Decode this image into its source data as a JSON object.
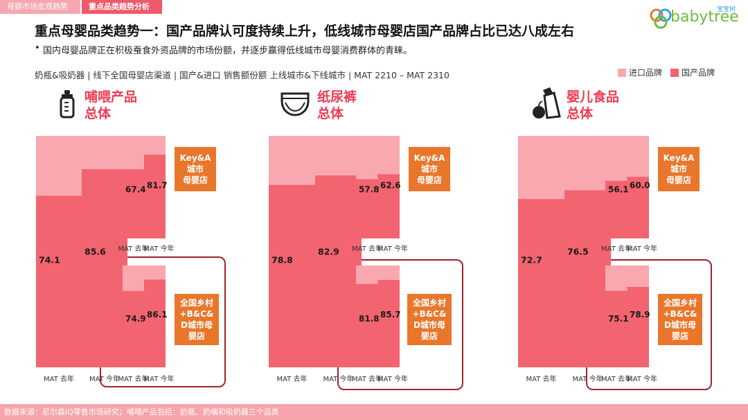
{
  "tabs": [
    "母婴市场宏观趋势",
    "重点品类趋势分析"
  ],
  "logo": {
    "text": "babytree",
    "sub": "宝宝树"
  },
  "title": "重点母婴品类趋势一：国产品牌认可度持续上升，低线城市母婴店国产品牌占比已达八成左右",
  "bullet": "国内母婴品牌正在积极蚕食外资品牌的市场份额，并逐步赢得低线城市母婴消费群体的青睐。",
  "meta": "奶瓶&吸奶器 | 线下全国母婴店渠道 | 国产&进口 销售额份额 上线城市&下线城市 | MAT 2210 – MAT 2310",
  "legend": {
    "imported": "进口品牌",
    "domestic": "国产品牌"
  },
  "colors": {
    "imported": "#f9a8b0",
    "domestic": "#f2646f",
    "badge": "#e8762b",
    "frame": "#a3212e",
    "title_red": "#ee3b52"
  },
  "footer": "数据来源：尼尔森IQ零售市场研究；哺喂产品包括：奶瓶、奶嘴和吸奶器三个品类",
  "badges": {
    "key": "Key&A\n城市\n母婴店",
    "low": "全国乡村\n+B&C&\nD城市母\n婴店"
  },
  "categories": [
    {
      "line1": "哺喂产品",
      "line2": "总体",
      "icon": "baby-bottle-icon"
    },
    {
      "line1": "纸尿裤",
      "line2": "总体",
      "icon": "diaper-icon"
    },
    {
      "line1": "婴儿食品",
      "line2": "总体",
      "icon": "baby-food-icon"
    }
  ],
  "chart_data": [
    {
      "type": "bar",
      "category": "哺喂产品",
      "segment": "总体",
      "categories": [
        "MAT 去年",
        "MAT 今年"
      ],
      "series": [
        {
          "name": "国产品牌",
          "values": [
            74.1,
            85.6
          ]
        },
        {
          "name": "进口品牌",
          "values": [
            25.9,
            14.4
          ]
        }
      ],
      "ylim": [
        0,
        100
      ]
    },
    {
      "type": "bar",
      "category": "哺喂产品",
      "segment": "Key&A城市母婴店",
      "categories": [
        "MAT 去年",
        "MAT 今年"
      ],
      "series": [
        {
          "name": "国产品牌",
          "values": [
            67.4,
            81.7
          ]
        },
        {
          "name": "进口品牌",
          "values": [
            32.6,
            18.3
          ]
        }
      ],
      "ylim": [
        0,
        100
      ]
    },
    {
      "type": "bar",
      "category": "哺喂产品",
      "segment": "全国乡村+B&C&D城市母婴店",
      "categories": [
        "MAT 去年",
        "MAT 今年"
      ],
      "series": [
        {
          "name": "国产品牌",
          "values": [
            74.9,
            86.1
          ]
        },
        {
          "name": "进口品牌",
          "values": [
            25.1,
            13.9
          ]
        }
      ],
      "ylim": [
        0,
        100
      ]
    },
    {
      "type": "bar",
      "category": "纸尿裤",
      "segment": "总体",
      "categories": [
        "MAT 去年",
        "MAT 今年"
      ],
      "series": [
        {
          "name": "国产品牌",
          "values": [
            78.8,
            82.9
          ]
        },
        {
          "name": "进口品牌",
          "values": [
            21.2,
            17.1
          ]
        }
      ],
      "ylim": [
        0,
        100
      ]
    },
    {
      "type": "bar",
      "category": "纸尿裤",
      "segment": "Key&A城市母婴店",
      "categories": [
        "MAT 去年",
        "MAT 今年"
      ],
      "series": [
        {
          "name": "国产品牌",
          "values": [
            57.8,
            62.6
          ]
        },
        {
          "name": "进口品牌",
          "values": [
            42.2,
            37.4
          ]
        }
      ],
      "ylim": [
        0,
        100
      ]
    },
    {
      "type": "bar",
      "category": "纸尿裤",
      "segment": "全国乡村+B&C&D城市母婴店",
      "categories": [
        "MAT 去年",
        "MAT 今年"
      ],
      "series": [
        {
          "name": "国产品牌",
          "values": [
            81.8,
            85.7
          ]
        },
        {
          "name": "进口品牌",
          "values": [
            18.2,
            14.3
          ]
        }
      ],
      "ylim": [
        0,
        100
      ]
    },
    {
      "type": "bar",
      "category": "婴儿食品",
      "segment": "总体",
      "categories": [
        "MAT 去年",
        "MAT 今年"
      ],
      "series": [
        {
          "name": "国产品牌",
          "values": [
            72.7,
            76.5
          ]
        },
        {
          "name": "进口品牌",
          "values": [
            27.3,
            23.5
          ]
        }
      ],
      "ylim": [
        0,
        100
      ]
    },
    {
      "type": "bar",
      "category": "婴儿食品",
      "segment": "Key&A城市母婴店",
      "categories": [
        "MAT 去年",
        "MAT 今年"
      ],
      "series": [
        {
          "name": "国产品牌",
          "values": [
            56.1,
            60.0
          ]
        },
        {
          "name": "进口品牌",
          "values": [
            43.9,
            40.0
          ]
        }
      ],
      "ylim": [
        0,
        100
      ]
    },
    {
      "type": "bar",
      "category": "婴儿食品",
      "segment": "全国乡村+B&C&D城市母婴店",
      "categories": [
        "MAT 去年",
        "MAT 今年"
      ],
      "series": [
        {
          "name": "国产品牌",
          "values": [
            75.1,
            78.9
          ]
        },
        {
          "name": "进口品牌",
          "values": [
            24.9,
            21.1
          ]
        }
      ],
      "ylim": [
        0,
        100
      ]
    }
  ]
}
